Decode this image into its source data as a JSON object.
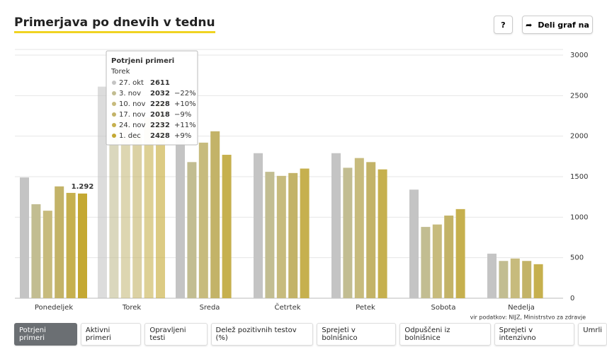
{
  "header": {
    "title": "Primerjava po dnevih v tednu",
    "help": "?",
    "share": "Deli graf na"
  },
  "chart_data": {
    "type": "bar",
    "categories": [
      "Ponedeljek",
      "Torek",
      "Sreda",
      "Četrtek",
      "Petek",
      "Sobota",
      "Nedelja"
    ],
    "series": [
      {
        "name": "27. okt",
        "color": "#c4c4c4",
        "values": [
          1490,
          2611,
          2250,
          1790,
          1790,
          1340,
          550
        ]
      },
      {
        "name": "3. nov",
        "color": "#c2bd91",
        "values": [
          1160,
          2032,
          1680,
          1560,
          1610,
          880,
          460
        ]
      },
      {
        "name": "10. nov",
        "color": "#c7bb7d",
        "values": [
          1080,
          2228,
          1920,
          1510,
          1730,
          910,
          490
        ]
      },
      {
        "name": "17. nov",
        "color": "#c3b368",
        "values": [
          1380,
          2018,
          2060,
          1545,
          1680,
          1020,
          460
        ]
      },
      {
        "name": "24. nov",
        "color": "#c6b04e",
        "values": [
          1300,
          2232,
          1770,
          1600,
          1590,
          1100,
          420
        ]
      },
      {
        "name": "1. dec",
        "color": "#c4a832",
        "values": [
          1292,
          2428,
          null,
          null,
          null,
          null,
          null
        ],
        "value_labels": [
          "1.292",
          null,
          null,
          null,
          null,
          null,
          null
        ]
      }
    ],
    "ylim": [
      0,
      3000
    ],
    "yticks": [
      0,
      500,
      1000,
      1500,
      2000,
      2500,
      3000
    ],
    "grid": true,
    "tooltip": {
      "title": "Potrjeni primeri",
      "changes": [
        null,
        "−22%",
        "+10%",
        "−9%",
        "+11%",
        "+9%"
      ]
    },
    "source": "vir podatkov: NIJZ, Ministrstvo za zdravje"
  },
  "buttons": [
    "Potrjeni primeri",
    "Aktivni primeri",
    "Opravljeni testi",
    "Delež pozitivnih testov (%)",
    "Sprejeti v bolnišnico",
    "Odpuščeni iz bolnišnice",
    "Sprejeti v intenzivno",
    "Umrli"
  ]
}
